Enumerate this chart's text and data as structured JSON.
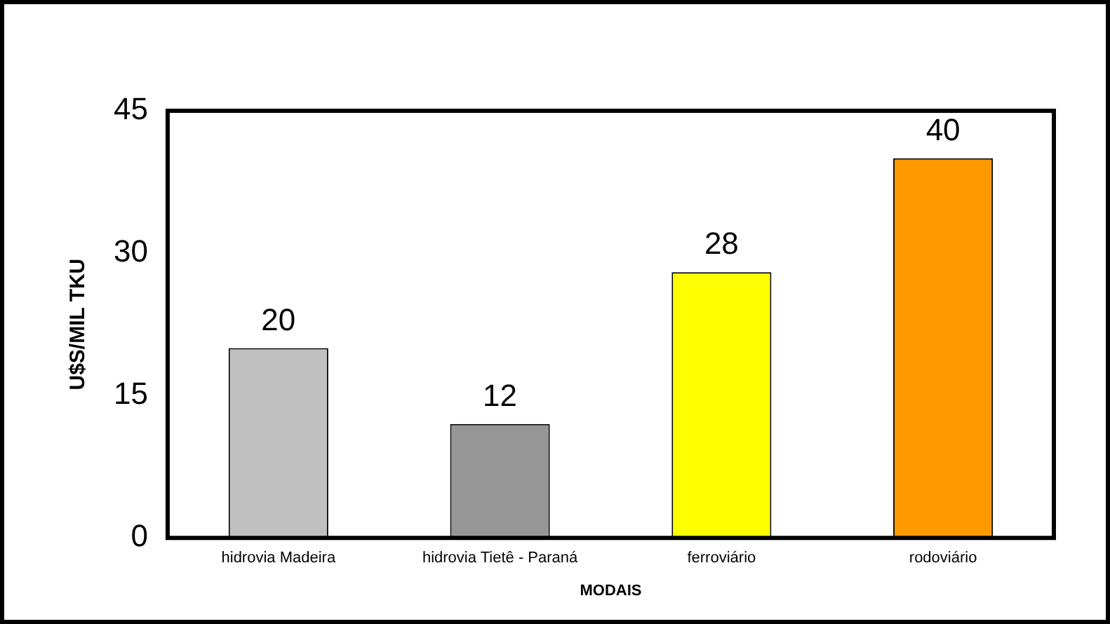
{
  "chart_data": {
    "type": "bar",
    "xlabel": "MODAIS",
    "ylabel": "U$S/MIL TKU",
    "categories": [
      "hidrovia Madeira",
      "hidrovia Tietê - Paraná",
      "ferroviário",
      "rodoviário"
    ],
    "values": [
      20,
      12,
      28,
      40
    ],
    "colors": [
      "#c0c0c0",
      "#969696",
      "#ffff00",
      "#ff9900"
    ],
    "ylim": [
      0,
      45
    ],
    "yticks": [
      0,
      15,
      30,
      45
    ],
    "grid": false,
    "legend": false,
    "data_labels": true
  }
}
